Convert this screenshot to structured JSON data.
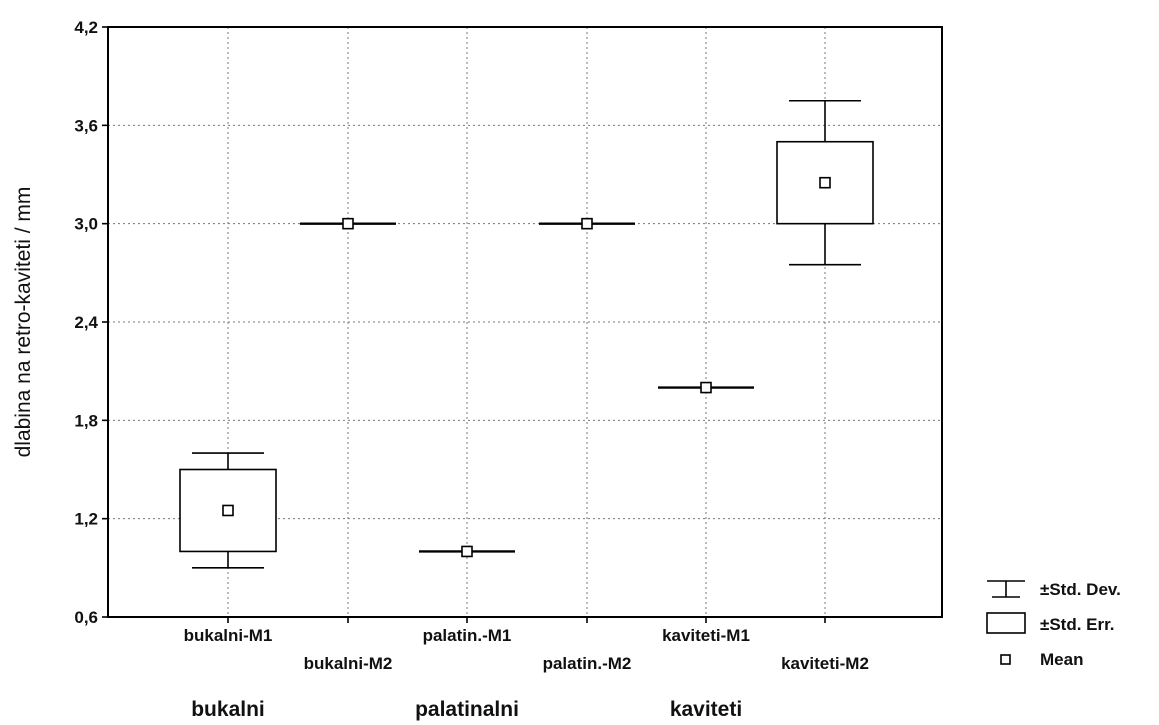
{
  "chart_data": {
    "type": "box",
    "title": "",
    "xlabel": "",
    "ylabel": "dlabina na retro-kaviteti / mm",
    "ylim": [
      0.6,
      4.2
    ],
    "yticks": [
      0.6,
      1.2,
      1.8,
      2.4,
      3.0,
      3.6,
      4.2
    ],
    "ytick_labels": [
      "0,6",
      "1,2",
      "1,8",
      "2,4",
      "3,0",
      "3,6",
      "4,2"
    ],
    "grid": true,
    "legend_position": "right",
    "categories": [
      "bukalni-M1",
      "bukalni-M2",
      "palatin.-M1",
      "palatin.-M2",
      "kaviteti-M1",
      "kaviteti-M2"
    ],
    "groups": [
      "bukalni",
      "palatinalni",
      "kaviteti"
    ],
    "series": [
      {
        "category": "bukalni-M1",
        "mean": 1.25,
        "se_low": 1.0,
        "se_high": 1.5,
        "sd_low": 0.9,
        "sd_high": 1.6
      },
      {
        "category": "bukalni-M2",
        "mean": 3.0,
        "se_low": 3.0,
        "se_high": 3.0,
        "sd_low": 3.0,
        "sd_high": 3.0
      },
      {
        "category": "palatin.-M1",
        "mean": 1.0,
        "se_low": 1.0,
        "se_high": 1.0,
        "sd_low": 1.0,
        "sd_high": 1.0
      },
      {
        "category": "palatin.-M2",
        "mean": 3.0,
        "se_low": 3.0,
        "se_high": 3.0,
        "sd_low": 3.0,
        "sd_high": 3.0
      },
      {
        "category": "kaviteti-M1",
        "mean": 2.0,
        "se_low": 2.0,
        "se_high": 2.0,
        "sd_low": 2.0,
        "sd_high": 2.0
      },
      {
        "category": "kaviteti-M2",
        "mean": 3.25,
        "se_low": 3.0,
        "se_high": 3.5,
        "sd_low": 2.75,
        "sd_high": 3.75
      }
    ],
    "legend": {
      "sd_label": "±Std. Dev.",
      "se_label": "±Std. Err.",
      "mean_label": "Mean"
    }
  }
}
